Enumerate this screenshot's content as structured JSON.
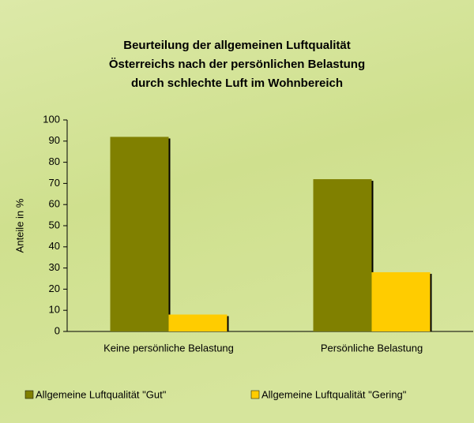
{
  "chart_data": {
    "type": "bar",
    "title": [
      "Beurteilung der allgemeinen Luftqualität",
      "Österreichs nach der persönlichen Belastung",
      "durch schlechte Luft im Wohnbereich"
    ],
    "y_label": "Anteile in %",
    "categories": [
      "Keine persönliche Belastung",
      "Persönliche Belastung"
    ],
    "series": [
      {
        "name": "Allgemeine Luftqualität \"Gut\"",
        "color": "#808000",
        "values": [
          92,
          72
        ]
      },
      {
        "name": "Allgemeine Luftqualität \"Gering\"",
        "color": "#ffcc00",
        "values": [
          8,
          28
        ]
      }
    ],
    "ylim": [
      0,
      100
    ],
    "yticks": [
      0,
      10,
      20,
      30,
      40,
      50,
      60,
      70,
      80,
      90,
      100
    ],
    "legend": "bottom"
  }
}
